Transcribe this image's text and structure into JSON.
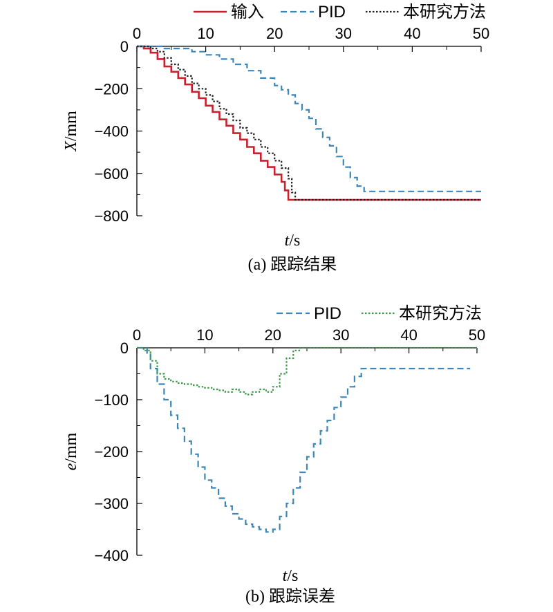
{
  "chart_data": [
    {
      "type": "line",
      "caption": "(a) 跟踪结果",
      "xlabel_var": "t",
      "xlabel_unit": "/s",
      "ylabel_var": "X",
      "ylabel_unit": "/mm",
      "xlim": [
        0,
        50
      ],
      "ylim": [
        -800,
        0
      ],
      "x_ticks": [
        0,
        10,
        20,
        30,
        40,
        50
      ],
      "y_ticks": [
        0,
        -200,
        -400,
        -600,
        -800
      ],
      "x_axis_position": "top",
      "grid": false,
      "legend_position": "top",
      "series": [
        {
          "name": "输入",
          "color": "#c8202f",
          "style": "solid",
          "points": [
            [
              0,
              0
            ],
            [
              1,
              -10
            ],
            [
              2,
              -30
            ],
            [
              3,
              -60
            ],
            [
              4,
              -95
            ],
            [
              5,
              -120
            ],
            [
              6,
              -150
            ],
            [
              7,
              -180
            ],
            [
              8,
              -215
            ],
            [
              9,
              -245
            ],
            [
              10,
              -280
            ],
            [
              11,
              -310
            ],
            [
              12,
              -345
            ],
            [
              13,
              -375
            ],
            [
              14,
              -410
            ],
            [
              15,
              -440
            ],
            [
              16,
              -475
            ],
            [
              17,
              -505
            ],
            [
              18,
              -540
            ],
            [
              19,
              -570
            ],
            [
              20,
              -605
            ],
            [
              21,
              -640
            ],
            [
              21.5,
              -680
            ],
            [
              22,
              -725
            ],
            [
              50,
              -725
            ]
          ]
        },
        {
          "name": "PID",
          "color": "#3e86b5",
          "style": "dashed",
          "points": [
            [
              0,
              0
            ],
            [
              4,
              -10
            ],
            [
              8,
              -25
            ],
            [
              10,
              -40
            ],
            [
              12,
              -60
            ],
            [
              14,
              -85
            ],
            [
              16,
              -115
            ],
            [
              18,
              -150
            ],
            [
              20,
              -185
            ],
            [
              21,
              -205
            ],
            [
              22,
              -230
            ],
            [
              23,
              -270
            ],
            [
              24,
              -300
            ],
            [
              25,
              -340
            ],
            [
              26,
              -390
            ],
            [
              27,
              -430
            ],
            [
              28,
              -470
            ],
            [
              29,
              -520
            ],
            [
              30,
              -570
            ],
            [
              31,
              -620
            ],
            [
              32,
              -660
            ],
            [
              33,
              -685
            ],
            [
              50,
              -685
            ]
          ]
        },
        {
          "name": "本研究方法",
          "color": "#222222",
          "style": "dotted",
          "points": [
            [
              0,
              0
            ],
            [
              2,
              -10
            ],
            [
              3,
              -25
            ],
            [
              4,
              -55
            ],
            [
              5,
              -85
            ],
            [
              6,
              -110
            ],
            [
              7,
              -140
            ],
            [
              8,
              -175
            ],
            [
              9,
              -200
            ],
            [
              10,
              -230
            ],
            [
              11,
              -260
            ],
            [
              12,
              -295
            ],
            [
              13,
              -320
            ],
            [
              14,
              -350
            ],
            [
              15,
              -385
            ],
            [
              16,
              -410
            ],
            [
              17,
              -440
            ],
            [
              18,
              -475
            ],
            [
              19,
              -505
            ],
            [
              20,
              -540
            ],
            [
              21,
              -575
            ],
            [
              22,
              -625
            ],
            [
              22.5,
              -690
            ],
            [
              23,
              -725
            ],
            [
              50,
              -725
            ]
          ]
        }
      ]
    },
    {
      "type": "line",
      "caption": "(b) 跟踪误差",
      "xlabel_var": "t",
      "xlabel_unit": "/s",
      "ylabel_var": "e",
      "ylabel_unit": "/mm",
      "xlim": [
        0,
        50
      ],
      "ylim": [
        -400,
        0
      ],
      "x_ticks": [
        0,
        10,
        20,
        30,
        40,
        50
      ],
      "y_ticks": [
        0,
        -100,
        -200,
        -300,
        -400
      ],
      "x_axis_position": "top",
      "grid": false,
      "legend_position": "top",
      "series": [
        {
          "name": "PID",
          "color": "#3e86b5",
          "style": "dashed",
          "points": [
            [
              0,
              0
            ],
            [
              1.5,
              -10
            ],
            [
              2,
              -40
            ],
            [
              3,
              -70
            ],
            [
              4,
              -100
            ],
            [
              5,
              -130
            ],
            [
              6,
              -155
            ],
            [
              7,
              -180
            ],
            [
              8,
              -205
            ],
            [
              9,
              -230
            ],
            [
              10,
              -255
            ],
            [
              11,
              -270
            ],
            [
              12,
              -290
            ],
            [
              13,
              -305
            ],
            [
              14,
              -320
            ],
            [
              15,
              -330
            ],
            [
              16,
              -340
            ],
            [
              17,
              -345
            ],
            [
              18,
              -350
            ],
            [
              19,
              -355
            ],
            [
              20,
              -350
            ],
            [
              21,
              -325
            ],
            [
              22,
              -300
            ],
            [
              23,
              -270
            ],
            [
              24,
              -240
            ],
            [
              25,
              -210
            ],
            [
              26,
              -185
            ],
            [
              27,
              -160
            ],
            [
              28,
              -140
            ],
            [
              29,
              -115
            ],
            [
              30,
              -95
            ],
            [
              31,
              -75
            ],
            [
              32,
              -55
            ],
            [
              33,
              -40
            ],
            [
              49,
              -40
            ]
          ]
        },
        {
          "name": "本研究方法",
          "color": "#3a9a4a",
          "style": "dotted",
          "points": [
            [
              0,
              0
            ],
            [
              1,
              -5
            ],
            [
              2,
              -25
            ],
            [
              3,
              -50
            ],
            [
              4,
              -60
            ],
            [
              5,
              -65
            ],
            [
              6,
              -68
            ],
            [
              7,
              -70
            ],
            [
              8,
              -72
            ],
            [
              9,
              -75
            ],
            [
              10,
              -77
            ],
            [
              11,
              -80
            ],
            [
              12,
              -82
            ],
            [
              13,
              -85
            ],
            [
              14,
              -80
            ],
            [
              15,
              -85
            ],
            [
              16,
              -90
            ],
            [
              17,
              -85
            ],
            [
              18,
              -80
            ],
            [
              19,
              -85
            ],
            [
              20,
              -75
            ],
            [
              21,
              -50
            ],
            [
              22,
              -20
            ],
            [
              23,
              -5
            ],
            [
              24,
              0
            ],
            [
              50,
              0
            ]
          ]
        }
      ]
    }
  ]
}
